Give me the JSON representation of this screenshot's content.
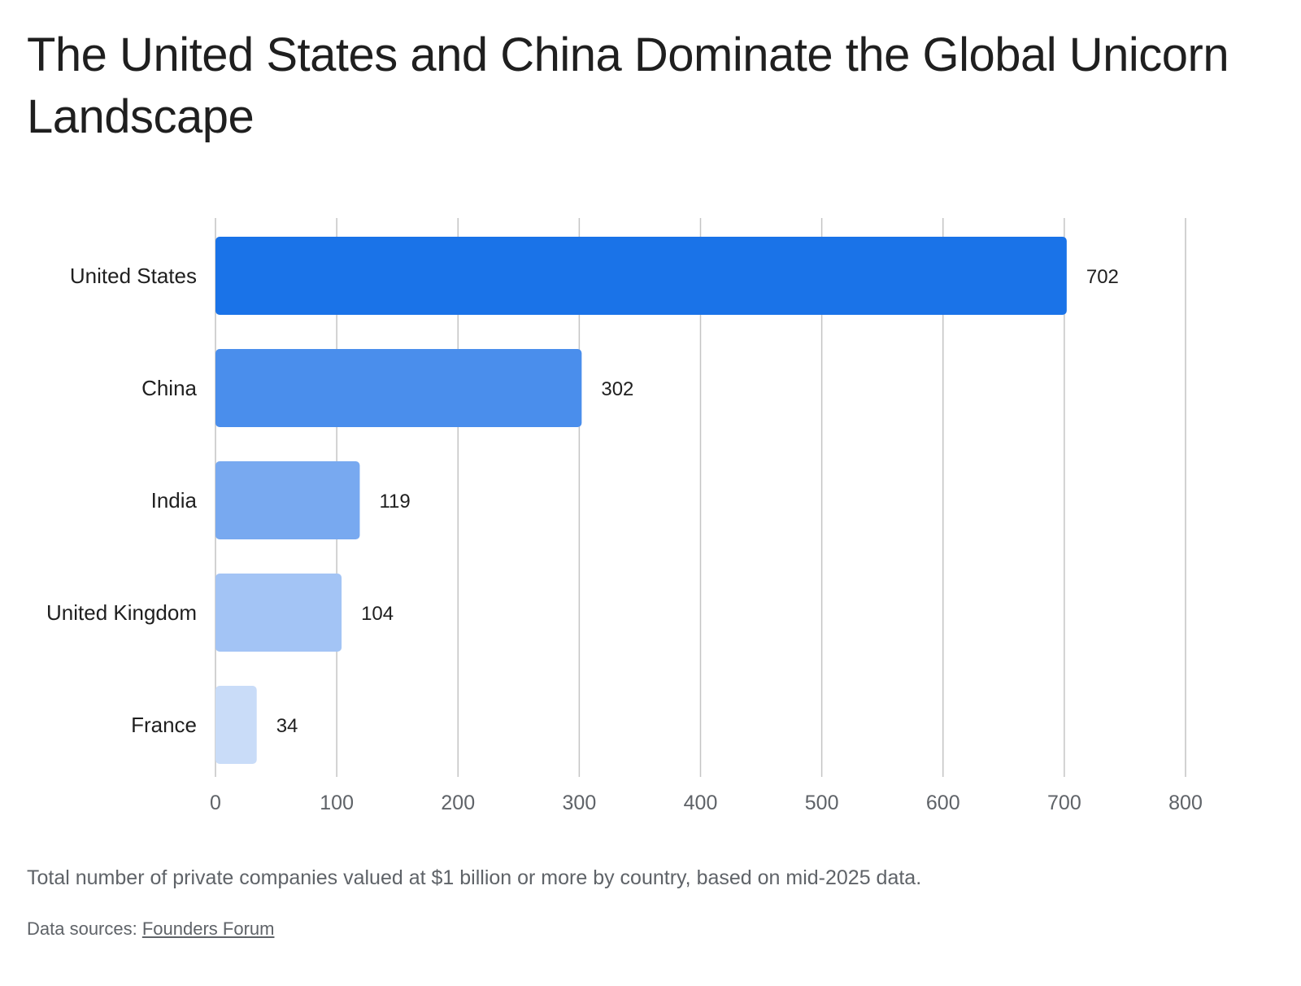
{
  "title": "The United States and China Dominate the Global Unicorn Landscape",
  "caption": "Total number of private companies valued at $1 billion or more by country, based on mid-2025 data.",
  "source": {
    "prefix": "Data sources: ",
    "link_text": "Founders Forum"
  },
  "colors": {
    "bars": [
      "#1a73e8",
      "#4a8eec",
      "#78a9f0",
      "#a3c4f5",
      "#c9dcf8"
    ],
    "grid": "#c4c4c4"
  },
  "chart_data": {
    "type": "bar",
    "orientation": "horizontal",
    "categories": [
      "United States",
      "China",
      "India",
      "United Kingdom",
      "France"
    ],
    "values": [
      702,
      302,
      119,
      104,
      34
    ],
    "data_labels": [
      "702",
      "302",
      "119",
      "104",
      "34"
    ],
    "xlim": [
      0,
      800
    ],
    "x_ticks": [
      0,
      100,
      200,
      300,
      400,
      500,
      600,
      700,
      800
    ],
    "grid": "vertical",
    "title": "The United States and China Dominate the Global Unicorn Landscape",
    "xlabel": "",
    "ylabel": ""
  }
}
